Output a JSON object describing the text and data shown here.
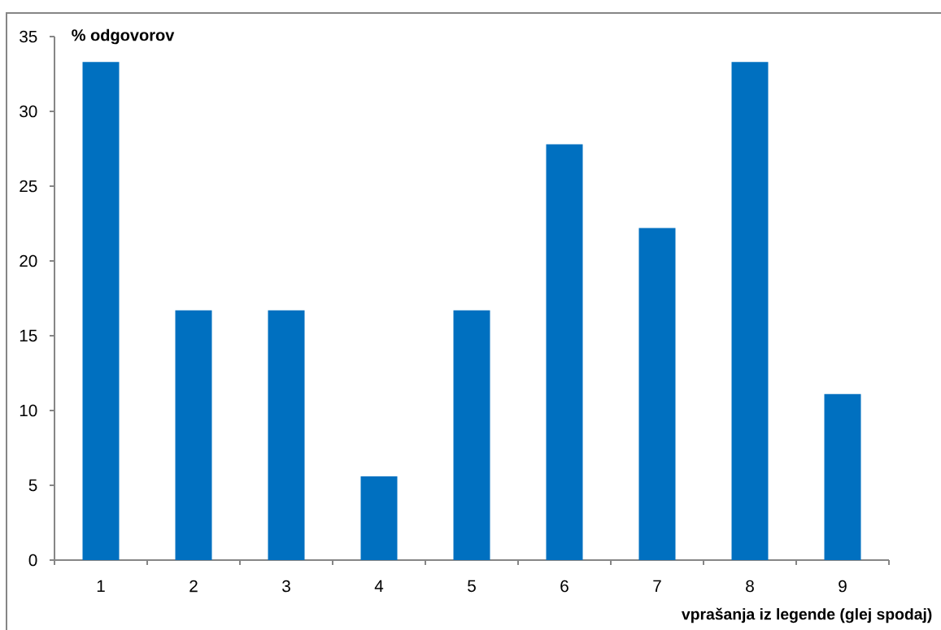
{
  "chart_data": {
    "type": "bar",
    "categories": [
      "1",
      "2",
      "3",
      "4",
      "5",
      "6",
      "7",
      "8",
      "9"
    ],
    "values": [
      33.3,
      16.7,
      16.7,
      5.6,
      16.7,
      27.8,
      22.2,
      33.3,
      11.1
    ],
    "color": "#0070c0",
    "ylabel": "% odgovorov",
    "xlabel": "vprašanja iz legende (glej spodaj)",
    "ylim": [
      0,
      35
    ],
    "yticks": [
      0,
      5,
      10,
      15,
      20,
      25,
      30,
      35
    ]
  }
}
